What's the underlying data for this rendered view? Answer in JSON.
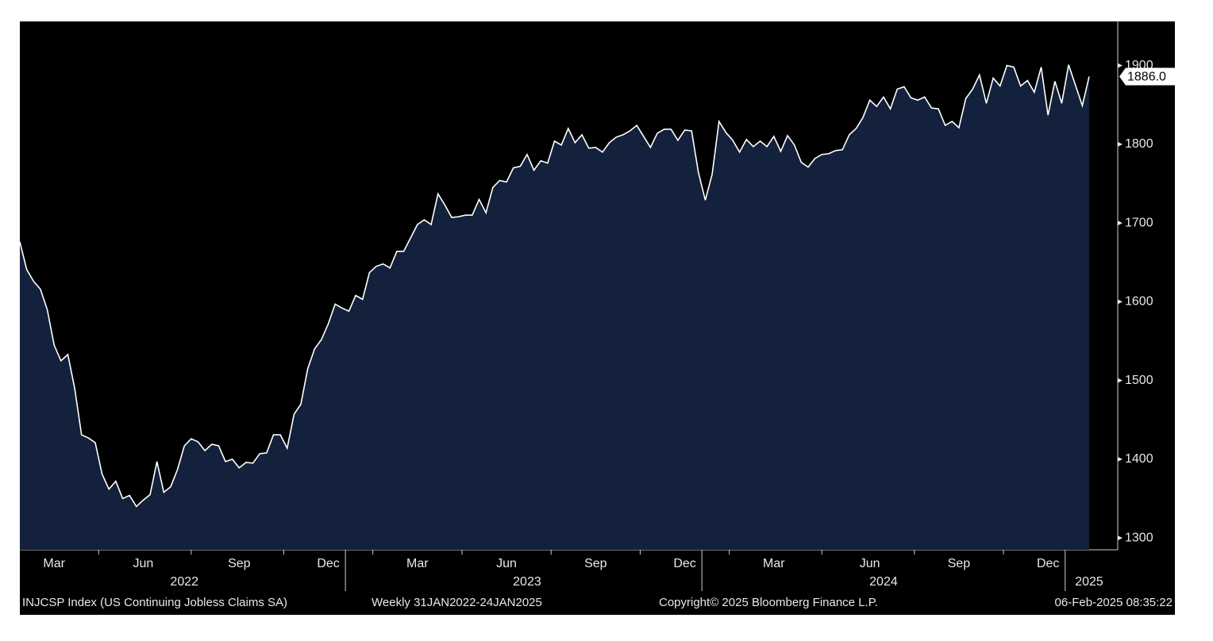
{
  "chart_data": {
    "type": "area",
    "categories": [
      null,
      null,
      null,
      null,
      null,
      "Mar",
      null,
      null,
      null,
      null,
      null,
      null,
      null,
      null,
      null,
      null,
      null,
      null,
      "Jun",
      null,
      null,
      null,
      null,
      null,
      null,
      null,
      null,
      null,
      null,
      null,
      null,
      null,
      "Sep",
      null,
      null,
      null,
      null,
      null,
      null,
      null,
      null,
      null,
      null,
      null,
      null,
      "Dec",
      null,
      null,
      null,
      null,
      null,
      null,
      null,
      null,
      null,
      null,
      null,
      null,
      "Mar",
      null,
      null,
      null,
      null,
      null,
      null,
      null,
      null,
      null,
      null,
      null,
      null,
      "Jun",
      null,
      null,
      null,
      null,
      null,
      null,
      null,
      null,
      null,
      null,
      null,
      null,
      "Sep",
      null,
      null,
      null,
      null,
      null,
      null,
      null,
      null,
      null,
      null,
      null,
      null,
      "Dec",
      null,
      null,
      null,
      null,
      null,
      null,
      null,
      null,
      null,
      null,
      null,
      null,
      "Mar",
      null,
      null,
      null,
      null,
      null,
      null,
      null,
      null,
      null,
      null,
      null,
      null,
      null,
      "Jun",
      null,
      null,
      null,
      null,
      null,
      null,
      null,
      null,
      null,
      null,
      null,
      null,
      "Sep",
      null,
      null,
      null,
      null,
      null,
      null,
      null,
      null,
      null,
      null,
      null,
      null,
      "Dec",
      null,
      null,
      null,
      null,
      null,
      null
    ],
    "category_years": [
      null,
      null,
      null,
      null,
      null,
      null,
      null,
      null,
      null,
      null,
      null,
      null,
      null,
      null,
      null,
      null,
      null,
      null,
      null,
      null,
      null,
      null,
      null,
      null,
      "2022",
      null,
      null,
      null,
      null,
      null,
      null,
      null,
      null,
      null,
      null,
      null,
      null,
      null,
      null,
      null,
      null,
      null,
      null,
      null,
      null,
      null,
      null,
      null,
      null,
      null,
      null,
      null,
      null,
      null,
      null,
      null,
      null,
      null,
      null,
      null,
      null,
      null,
      null,
      null,
      null,
      null,
      null,
      null,
      null,
      null,
      null,
      null,
      null,
      null,
      "2023",
      null,
      null,
      null,
      null,
      null,
      null,
      null,
      null,
      null,
      null,
      null,
      null,
      null,
      null,
      null,
      null,
      null,
      null,
      null,
      null,
      null,
      null,
      null,
      null,
      null,
      null,
      null,
      null,
      null,
      null,
      null,
      null,
      null,
      null,
      null,
      null,
      null,
      null,
      null,
      null,
      null,
      null,
      null,
      null,
      null,
      null,
      null,
      null,
      null,
      null,
      null,
      "2024",
      null,
      null,
      null,
      null,
      null,
      null,
      null,
      null,
      null,
      null,
      null,
      null,
      null,
      null,
      null,
      null,
      null,
      null,
      null,
      null,
      null,
      null,
      null,
      null,
      null,
      null,
      null,
      null,
      null,
      "2025"
    ],
    "values": [
      1676,
      1641,
      1626,
      1616,
      1590,
      1545,
      1525,
      1533,
      1490,
      1431,
      1427,
      1421,
      1381,
      1362,
      1372,
      1350,
      1354,
      1340,
      1348,
      1355,
      1397,
      1358,
      1365,
      1387,
      1417,
      1426,
      1422,
      1411,
      1419,
      1417,
      1397,
      1400,
      1389,
      1396,
      1395,
      1407,
      1408,
      1431,
      1431,
      1414,
      1457,
      1470,
      1515,
      1540,
      1552,
      1572,
      1597,
      1592,
      1588,
      1608,
      1603,
      1637,
      1645,
      1648,
      1643,
      1664,
      1664,
      1681,
      1698,
      1704,
      1698,
      1737,
      1723,
      1707,
      1708,
      1710,
      1710,
      1730,
      1713,
      1745,
      1754,
      1752,
      1770,
      1772,
      1787,
      1767,
      1779,
      1776,
      1804,
      1799,
      1820,
      1802,
      1812,
      1795,
      1796,
      1790,
      1802,
      1809,
      1812,
      1817,
      1824,
      1810,
      1796,
      1814,
      1819,
      1819,
      1805,
      1818,
      1817,
      1764,
      1729,
      1762,
      1829,
      1815,
      1805,
      1790,
      1806,
      1797,
      1804,
      1797,
      1810,
      1791,
      1811,
      1799,
      1777,
      1771,
      1782,
      1787,
      1788,
      1792,
      1793,
      1812,
      1820,
      1834,
      1856,
      1848,
      1860,
      1845,
      1870,
      1873,
      1859,
      1856,
      1860,
      1846,
      1845,
      1824,
      1829,
      1821,
      1858,
      1870,
      1888,
      1852,
      1884,
      1874,
      1900,
      1898,
      1874,
      1881,
      1866,
      1898,
      1837,
      1880,
      1852,
      1901,
      1875,
      1849,
      1886
    ],
    "last_value_label": "1886.0",
    "color": "#ffffff",
    "fill": "#13213d",
    "background": "#000000",
    "ylim": [
      1285,
      1956
    ],
    "yticks": [
      1300,
      1400,
      1500,
      1600,
      1700,
      1800,
      1900
    ],
    "y_axis_side": "right",
    "source": "INJCSP Index (US Continuing Jobless Claims SA)",
    "period": "Weekly 31JAN2022-24JAN2025",
    "copyright": "Copyright© 2025 Bloomberg Finance L.P.",
    "timestamp": "06-Feb-2025 08:35:22"
  }
}
